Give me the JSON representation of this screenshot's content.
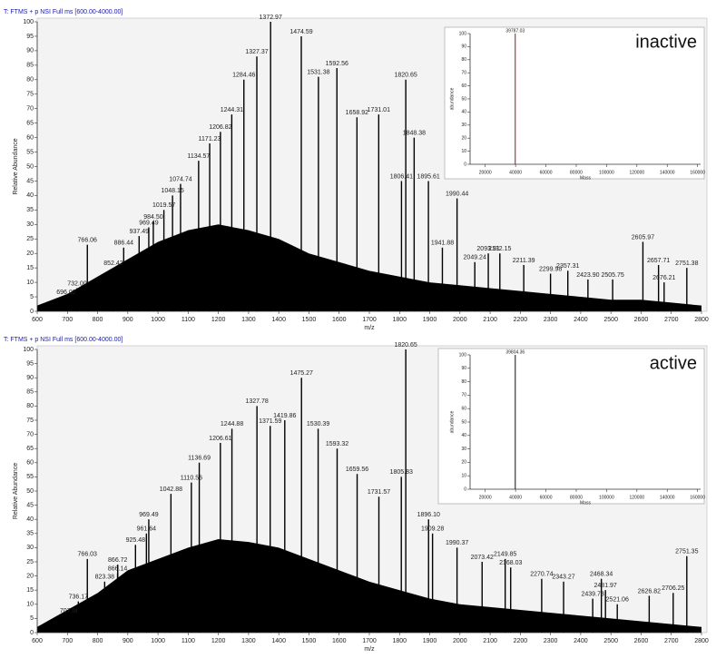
{
  "chart_data": [
    {
      "type": "spectrum",
      "title": "T: FTMS + p NSI Full ms [600.00-4000.00]",
      "xlabel": "m/z",
      "ylabel": "Relative Abundance",
      "xlim": [
        600,
        2800
      ],
      "ylim": [
        0,
        100
      ],
      "xticks": [
        600,
        700,
        800,
        900,
        1000,
        1100,
        1200,
        1300,
        1400,
        1500,
        1600,
        1700,
        1800,
        1900,
        2000,
        2100,
        2200,
        2300,
        2400,
        2500,
        2600,
        2700,
        2800
      ],
      "yticks": [
        0,
        5,
        10,
        15,
        20,
        25,
        30,
        35,
        40,
        45,
        50,
        55,
        60,
        65,
        70,
        75,
        80,
        85,
        90,
        95,
        100
      ],
      "color": "#000000",
      "envelope": {
        "x": [
          600,
          700,
          800,
          900,
          1000,
          1100,
          1200,
          1300,
          1400,
          1500,
          1600,
          1700,
          1800,
          1900,
          2000,
          2100,
          2200,
          2300,
          2400,
          2500,
          2600,
          2700,
          2800
        ],
        "values": [
          2,
          6,
          12,
          18,
          24,
          28,
          30,
          28,
          25,
          20,
          17,
          14,
          12,
          10,
          9,
          8,
          7,
          6,
          5,
          4,
          4,
          3,
          2
        ]
      },
      "peaks": {
        "x": [
          696.02,
          732.0,
          766.06,
          852.42,
          886.44,
          937.49,
          969.49,
          984.5,
          1019.57,
          1048.15,
          1074.74,
          1134.57,
          1171.23,
          1206.82,
          1244.31,
          1284.46,
          1327.37,
          1372.97,
          1474.59,
          1531.38,
          1592.56,
          1658.92,
          1731.01,
          1806.41,
          1820.65,
          1848.38,
          1895.61,
          1941.88,
          1990.44,
          2049.24,
          2093.91,
          2132.15,
          2211.39,
          2299.98,
          2357.31,
          2423.9,
          2505.75,
          2605.97,
          2657.71,
          2676.21,
          2751.38
        ],
        "x_labels": [
          "696.02",
          "732.00",
          "766.06",
          "852.42",
          "886.44",
          "937.49",
          "969.49",
          "984.50",
          "1019.57",
          "1048.15",
          "1074.74",
          "1134.57",
          "1171.23",
          "1206.82",
          "1244.31",
          "1284.46",
          "1327.37",
          "1372.97",
          "1474.59",
          "1531.38",
          "1592.56",
          "1658.92",
          "1731.01",
          "1806.41",
          "1820.65",
          "1848.38",
          "1895.61",
          "1941.88",
          "1990.44",
          "2049.24",
          "2093.91",
          "2132.15",
          "2211.39",
          "2299.98",
          "2357.31",
          "2423.90",
          "2505.75",
          "2605.97",
          "2657.71",
          "2676.21",
          "2751.38"
        ],
        "values": [
          5,
          8,
          23,
          15,
          22,
          26,
          29,
          31,
          35,
          40,
          44,
          52,
          58,
          62,
          68,
          80,
          88,
          100,
          95,
          81,
          84,
          67,
          68,
          45,
          80,
          60,
          45,
          22,
          39,
          17,
          20,
          20,
          16,
          13,
          14,
          11,
          11,
          24,
          16,
          10,
          15
        ]
      }
    },
    {
      "type": "stick",
      "corner_label": "inactive",
      "xlabel": "Mass",
      "ylabel": "abundance",
      "xlim": [
        10000,
        162000
      ],
      "ylim": [
        0,
        100
      ],
      "xticks": [
        20000,
        40000,
        60000,
        80000,
        100000,
        120000,
        140000,
        160000
      ],
      "yticks": [
        0,
        10,
        20,
        30,
        40,
        50,
        60,
        70,
        80,
        90,
        100
      ],
      "color": "#8b1a1a",
      "x": [
        39787.03
      ],
      "x_labels": [
        "39787.03"
      ],
      "values": [
        100
      ]
    },
    {
      "type": "spectrum",
      "title": "T: FTMS + p NSI Full ms [600.00-4000.00]",
      "xlabel": "m/z",
      "ylabel": "Relative Abundance",
      "xlim": [
        600,
        2800
      ],
      "ylim": [
        0,
        100
      ],
      "xticks": [
        600,
        700,
        800,
        900,
        1000,
        1100,
        1200,
        1300,
        1400,
        1500,
        1600,
        1700,
        1800,
        1900,
        2000,
        2100,
        2200,
        2300,
        2400,
        2500,
        2600,
        2700,
        2800
      ],
      "yticks": [
        0,
        5,
        10,
        15,
        20,
        25,
        30,
        35,
        40,
        45,
        50,
        55,
        60,
        65,
        70,
        75,
        80,
        85,
        90,
        95,
        100
      ],
      "color": "#000000",
      "envelope": {
        "x": [
          600,
          700,
          800,
          900,
          1000,
          1100,
          1200,
          1300,
          1400,
          1500,
          1600,
          1700,
          1800,
          1900,
          2000,
          2100,
          2200,
          2300,
          2400,
          2500,
          2600,
          2700,
          2800
        ],
        "values": [
          2,
          8,
          14,
          22,
          26,
          30,
          33,
          32,
          30,
          26,
          22,
          18,
          15,
          12,
          10,
          9,
          8,
          7,
          6,
          5,
          4,
          3,
          2
        ]
      },
      "peaks": {
        "x": [
          707.06,
          736.17,
          766.03,
          823.38,
          866.14,
          866.72,
          925.48,
          961.64,
          969.49,
          1042.88,
          1110.56,
          1136.69,
          1206.61,
          1244.88,
          1327.78,
          1371.59,
          1419.86,
          1475.27,
          1530.39,
          1593.32,
          1659.56,
          1731.57,
          1805.83,
          1820.65,
          1896.1,
          1909.28,
          1990.37,
          2073.42,
          2149.85,
          2168.03,
          2270.74,
          2343.27,
          2439.73,
          2468.34,
          2481.97,
          2521.06,
          2626.82,
          2706.25,
          2751.35
        ],
        "x_labels": [
          "707.06",
          "736.17",
          "766.03",
          "823.38",
          "866.14",
          "866.72",
          "925.48",
          "961.64",
          "969.49",
          "1042.88",
          "1110.56",
          "1136.69",
          "1206.61",
          "1244.88",
          "1327.78",
          "1371.59",
          "1419.86",
          "1475.27",
          "1530.39",
          "1593.32",
          "1659.56",
          "1731.57",
          "1805.83",
          "1820.65",
          "1896.10",
          "1909.28",
          "1990.37",
          "2073.42",
          "2149.85",
          "2168.03",
          "2270.74",
          "2343.27",
          "2439.73",
          "2468.34",
          "2481.97",
          "2521.06",
          "2626.82",
          "2706.25",
          "2751.35"
        ],
        "values": [
          6,
          11,
          26,
          18,
          21,
          24,
          31,
          35,
          40,
          49,
          53,
          60,
          67,
          72,
          80,
          73,
          75,
          90,
          72,
          65,
          56,
          48,
          55,
          100,
          40,
          35,
          30,
          25,
          26,
          23,
          19,
          18,
          12,
          19,
          15,
          10,
          13,
          14,
          27
        ]
      }
    },
    {
      "type": "stick",
      "corner_label": "active",
      "xlabel": "Mass",
      "ylabel": "abundance",
      "xlim": [
        10000,
        162000
      ],
      "ylim": [
        0,
        100
      ],
      "xticks": [
        20000,
        40000,
        60000,
        80000,
        100000,
        120000,
        140000,
        160000
      ],
      "yticks": [
        0,
        10,
        20,
        30,
        40,
        50,
        60,
        70,
        80,
        90,
        100
      ],
      "color": "#111111",
      "x": [
        39804.36
      ],
      "x_labels": [
        "39804.36"
      ],
      "values": [
        100
      ]
    }
  ]
}
